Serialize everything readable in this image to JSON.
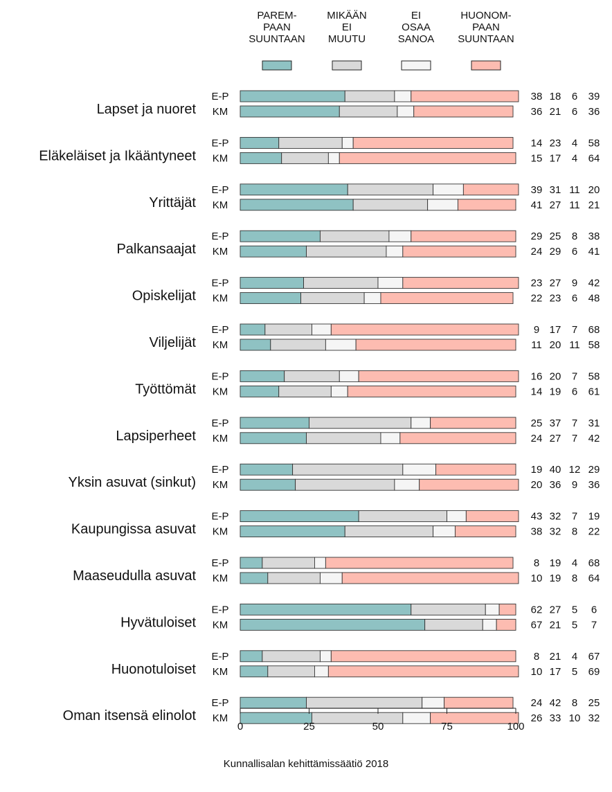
{
  "chart_data": {
    "type": "bar",
    "orientation": "horizontal",
    "stacked": true,
    "xlim": [
      0,
      100
    ],
    "xticks": [
      0,
      25,
      50,
      75,
      100
    ],
    "legend_position": "top",
    "grid": false,
    "series": [
      {
        "name": [
          "PAREM-",
          "PAAN",
          "SUUNTAAN"
        ],
        "color": "#8fc2c3"
      },
      {
        "name": [
          "MIKÄÄN",
          "EI",
          "MUUTU"
        ],
        "color": "#d9d9d9"
      },
      {
        "name": [
          "EI",
          "OSAA",
          "SANOA"
        ],
        "color": "#f5f5f5"
      },
      {
        "name": [
          "HUONOM-",
          "PAAN",
          "SUUNTAAN"
        ],
        "color": "#fdbcb1"
      }
    ],
    "groups": [
      {
        "label": "Lapset ja nuoret",
        "rows": [
          {
            "label": "E-P",
            "values": [
              38,
              18,
              6,
              39
            ]
          },
          {
            "label": "KM",
            "values": [
              36,
              21,
              6,
              36
            ]
          }
        ]
      },
      {
        "label": "Eläkeläiset ja Ikääntyneet",
        "rows": [
          {
            "label": "E-P",
            "values": [
              14,
              23,
              4,
              58
            ]
          },
          {
            "label": "KM",
            "values": [
              15,
              17,
              4,
              64
            ]
          }
        ]
      },
      {
        "label": "Yrittäjät",
        "rows": [
          {
            "label": "E-P",
            "values": [
              39,
              31,
              11,
              20
            ]
          },
          {
            "label": "KM",
            "values": [
              41,
              27,
              11,
              21
            ]
          }
        ]
      },
      {
        "label": "Palkansaajat",
        "rows": [
          {
            "label": "E-P",
            "values": [
              29,
              25,
              8,
              38
            ]
          },
          {
            "label": "KM",
            "values": [
              24,
              29,
              6,
              41
            ]
          }
        ]
      },
      {
        "label": "Opiskelijat",
        "rows": [
          {
            "label": "E-P",
            "values": [
              23,
              27,
              9,
              42
            ]
          },
          {
            "label": "KM",
            "values": [
              22,
              23,
              6,
              48
            ]
          }
        ]
      },
      {
        "label": "Viljelijät",
        "rows": [
          {
            "label": "E-P",
            "values": [
              9,
              17,
              7,
              68
            ]
          },
          {
            "label": "KM",
            "values": [
              11,
              20,
              11,
              58
            ]
          }
        ]
      },
      {
        "label": "Työttömät",
        "rows": [
          {
            "label": "E-P",
            "values": [
              16,
              20,
              7,
              58
            ]
          },
          {
            "label": "KM",
            "values": [
              14,
              19,
              6,
              61
            ]
          }
        ]
      },
      {
        "label": "Lapsiperheet",
        "rows": [
          {
            "label": "E-P",
            "values": [
              25,
              37,
              7,
              31
            ]
          },
          {
            "label": "KM",
            "values": [
              24,
              27,
              7,
              42
            ]
          }
        ]
      },
      {
        "label": "Yksin asuvat (sinkut)",
        "rows": [
          {
            "label": "E-P",
            "values": [
              19,
              40,
              12,
              29
            ]
          },
          {
            "label": "KM",
            "values": [
              20,
              36,
              9,
              36
            ]
          }
        ]
      },
      {
        "label": "Kaupungissa asuvat",
        "rows": [
          {
            "label": "E-P",
            "values": [
              43,
              32,
              7,
              19
            ]
          },
          {
            "label": "KM",
            "values": [
              38,
              32,
              8,
              22
            ]
          }
        ]
      },
      {
        "label": "Maaseudulla asuvat",
        "rows": [
          {
            "label": "E-P",
            "values": [
              8,
              19,
              4,
              68
            ]
          },
          {
            "label": "KM",
            "values": [
              10,
              19,
              8,
              64
            ]
          }
        ]
      },
      {
        "label": "Hyvätuloiset",
        "rows": [
          {
            "label": "E-P",
            "values": [
              62,
              27,
              5,
              6
            ]
          },
          {
            "label": "KM",
            "values": [
              67,
              21,
              5,
              7
            ]
          }
        ]
      },
      {
        "label": "Huonotuloiset",
        "rows": [
          {
            "label": "E-P",
            "values": [
              8,
              21,
              4,
              67
            ]
          },
          {
            "label": "KM",
            "values": [
              10,
              17,
              5,
              69
            ]
          }
        ]
      },
      {
        "label": "Oman itsensä elinolot",
        "rows": [
          {
            "label": "E-P",
            "values": [
              24,
              42,
              8,
              25
            ]
          },
          {
            "label": "KM",
            "values": [
              26,
              33,
              10,
              32
            ]
          }
        ]
      }
    ],
    "footer": "Kunnallisalan kehittämissäätiö 2018"
  }
}
